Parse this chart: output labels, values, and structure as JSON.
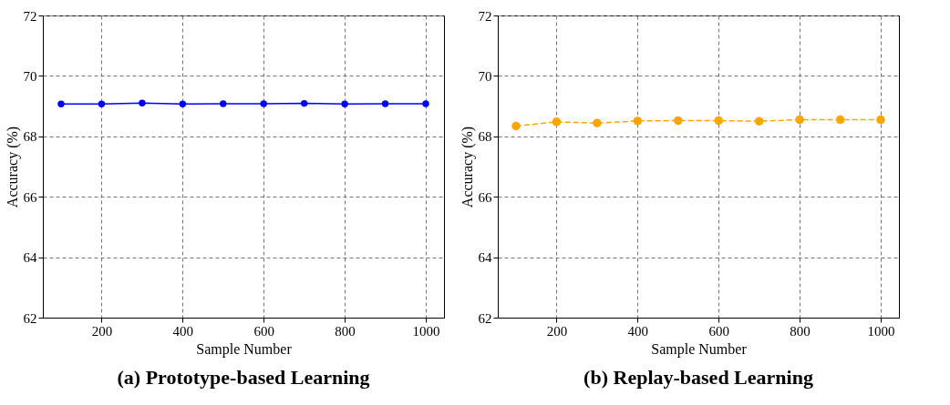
{
  "chart_data": [
    {
      "type": "line",
      "title": "(a) Prototype-based Learning",
      "xlabel": "Sample Number",
      "ylabel": "Accuracy (%)",
      "x": [
        100,
        200,
        300,
        400,
        500,
        600,
        700,
        800,
        900,
        1000
      ],
      "series": [
        {
          "color": "#0000ff",
          "values": [
            69.07,
            69.07,
            69.1,
            69.07,
            69.08,
            69.08,
            69.09,
            69.07,
            69.08,
            69.08
          ],
          "line_style": "solid",
          "marker": "circle"
        }
      ],
      "xlim": [
        55,
        1045
      ],
      "xticks": [
        200,
        400,
        600,
        800,
        1000
      ],
      "ylim": [
        62,
        72
      ],
      "yticks": [
        62,
        64,
        66,
        68,
        70,
        72
      ],
      "grid": true
    },
    {
      "type": "line",
      "title": "(b) Replay-based Learning",
      "xlabel": "Sample Number",
      "ylabel": "Accuracy (%)",
      "x": [
        100,
        200,
        300,
        400,
        500,
        600,
        700,
        800,
        900,
        1000
      ],
      "series": [
        {
          "color": "#ffa500",
          "values": [
            68.34,
            68.48,
            68.44,
            68.51,
            68.52,
            68.52,
            68.5,
            68.55,
            68.55,
            68.55
          ],
          "line_style": "dashed",
          "marker": "circle"
        }
      ],
      "xlim": [
        55,
        1045
      ],
      "xticks": [
        200,
        400,
        600,
        800,
        1000
      ],
      "ylim": [
        62,
        72
      ],
      "yticks": [
        62,
        64,
        66,
        68,
        70,
        72
      ],
      "grid": true
    }
  ]
}
